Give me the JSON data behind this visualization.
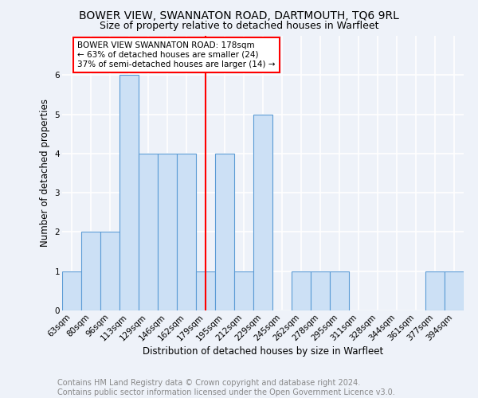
{
  "title": "BOWER VIEW, SWANNATON ROAD, DARTMOUTH, TQ6 9RL",
  "subtitle": "Size of property relative to detached houses in Warfleet",
  "xlabel": "Distribution of detached houses by size in Warfleet",
  "ylabel": "Number of detached properties",
  "footer_line1": "Contains HM Land Registry data © Crown copyright and database right 2024.",
  "footer_line2": "Contains public sector information licensed under the Open Government Licence v3.0.",
  "categories": [
    "63sqm",
    "80sqm",
    "96sqm",
    "113sqm",
    "129sqm",
    "146sqm",
    "162sqm",
    "179sqm",
    "195sqm",
    "212sqm",
    "229sqm",
    "245sqm",
    "262sqm",
    "278sqm",
    "295sqm",
    "311sqm",
    "328sqm",
    "344sqm",
    "361sqm",
    "377sqm",
    "394sqm"
  ],
  "values": [
    1,
    2,
    2,
    6,
    4,
    4,
    4,
    1,
    4,
    1,
    5,
    0,
    1,
    1,
    1,
    0,
    0,
    0,
    0,
    1,
    1
  ],
  "bar_color": "#cce0f5",
  "bar_edge_color": "#5b9bd5",
  "red_line_x": 7,
  "annotation_text": "BOWER VIEW SWANNATON ROAD: 178sqm\n← 63% of detached houses are smaller (24)\n37% of semi-detached houses are larger (14) →",
  "annotation_box_color": "white",
  "annotation_box_edge": "red",
  "ylim": [
    0,
    7
  ],
  "yticks": [
    0,
    1,
    2,
    3,
    4,
    5,
    6
  ],
  "background_color": "#eef2f9",
  "grid_color": "#ffffff",
  "title_fontsize": 10,
  "subtitle_fontsize": 9,
  "axis_label_fontsize": 8.5,
  "tick_fontsize": 7.5,
  "footer_fontsize": 7,
  "annotation_fontsize": 7.5
}
